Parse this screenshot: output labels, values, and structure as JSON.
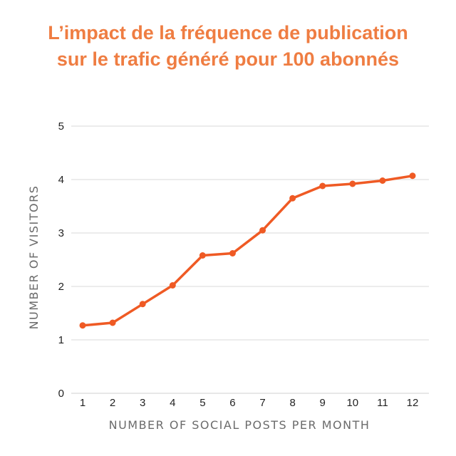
{
  "colors": {
    "title": "#ef7d42",
    "line": "#ef5a24",
    "grid": "#d9d9d9",
    "axis_text": "#222222",
    "axis_title": "#6b6b6b"
  },
  "chart_data": {
    "type": "line",
    "title_lines": [
      "L’impact de la fréquence de publication",
      "sur le trafic généré pour 100 abonnés"
    ],
    "xlabel": "NUMBER OF SOCIAL POSTS PER MONTH",
    "ylabel": "NUMBER OF VISITORS",
    "x": [
      1,
      2,
      3,
      4,
      5,
      6,
      7,
      8,
      9,
      10,
      11,
      12
    ],
    "x_tick_labels": [
      "1",
      "2",
      "3",
      "4",
      "5",
      "6",
      "7",
      "8",
      "9",
      "10",
      "11",
      "12"
    ],
    "y_tick_labels": [
      "0",
      "1",
      "2",
      "3",
      "4",
      "5"
    ],
    "ylim": [
      0,
      5
    ],
    "grid": "horizontal",
    "legend": "none",
    "series": [
      {
        "values": [
          1.27,
          1.32,
          1.67,
          2.02,
          2.58,
          2.62,
          3.05,
          3.65,
          3.88,
          3.92,
          3.98,
          4.07
        ]
      }
    ]
  }
}
